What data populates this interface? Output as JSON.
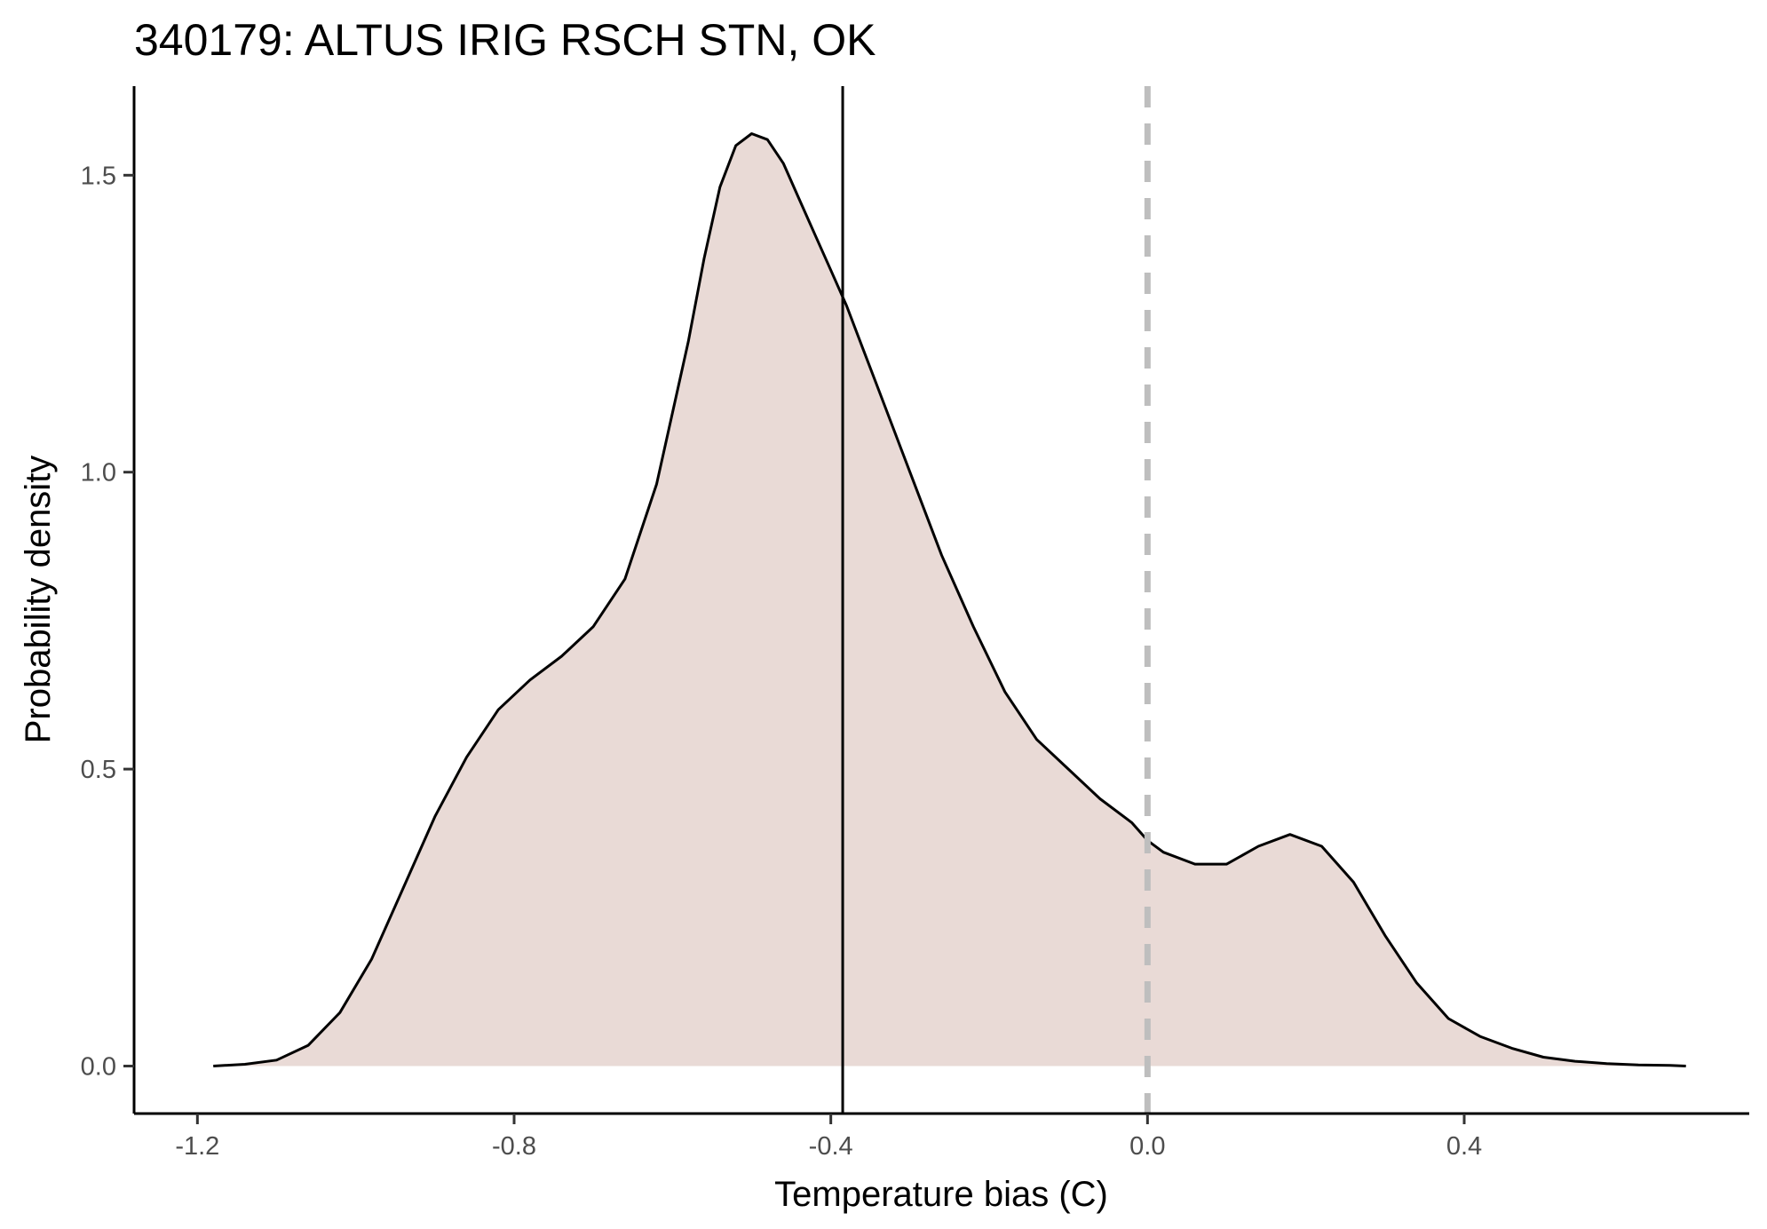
{
  "chart_data": {
    "type": "area",
    "title": "340179: ALTUS IRIG RSCH STN, OK",
    "xlabel": "Temperature bias (C)",
    "ylabel": "Probability density",
    "xlim": [
      -1.28,
      0.76
    ],
    "ylim": [
      -0.08,
      1.65
    ],
    "x_ticks": [
      -1.2,
      -0.8,
      -0.4,
      0.0,
      0.4
    ],
    "x_tick_labels": [
      "-1.2",
      "-0.8",
      "-0.4",
      "0.0",
      "0.4"
    ],
    "y_ticks": [
      0.0,
      0.5,
      1.0,
      1.5
    ],
    "y_tick_labels": [
      "0.0",
      "0.5",
      "1.0",
      "1.5"
    ],
    "grid": false,
    "series": [
      {
        "fill_color": "#e9dad6",
        "line_color": "#000000",
        "x": [
          -1.18,
          -1.14,
          -1.1,
          -1.06,
          -1.02,
          -0.98,
          -0.94,
          -0.9,
          -0.86,
          -0.82,
          -0.78,
          -0.74,
          -0.7,
          -0.66,
          -0.62,
          -0.58,
          -0.56,
          -0.54,
          -0.52,
          -0.5,
          -0.48,
          -0.46,
          -0.44,
          -0.42,
          -0.4,
          -0.38,
          -0.36,
          -0.34,
          -0.32,
          -0.3,
          -0.26,
          -0.22,
          -0.18,
          -0.14,
          -0.1,
          -0.06,
          -0.02,
          0.0,
          0.02,
          0.06,
          0.1,
          0.14,
          0.18,
          0.22,
          0.26,
          0.3,
          0.34,
          0.38,
          0.42,
          0.46,
          0.5,
          0.54,
          0.58,
          0.62,
          0.66,
          0.68
        ],
        "y": [
          0.0,
          0.003,
          0.01,
          0.035,
          0.09,
          0.18,
          0.3,
          0.42,
          0.52,
          0.6,
          0.65,
          0.69,
          0.74,
          0.82,
          0.98,
          1.22,
          1.36,
          1.48,
          1.55,
          1.57,
          1.56,
          1.52,
          1.46,
          1.4,
          1.34,
          1.28,
          1.21,
          1.14,
          1.07,
          1.0,
          0.86,
          0.74,
          0.63,
          0.55,
          0.5,
          0.45,
          0.41,
          0.38,
          0.36,
          0.34,
          0.34,
          0.37,
          0.39,
          0.37,
          0.31,
          0.22,
          0.14,
          0.08,
          0.05,
          0.03,
          0.015,
          0.008,
          0.004,
          0.002,
          0.001,
          0.0
        ]
      }
    ],
    "reference_lines": [
      {
        "orientation": "vertical",
        "x": -0.385,
        "style": "solid",
        "color": "#000000"
      },
      {
        "orientation": "vertical",
        "x": 0.0,
        "style": "dashed",
        "color": "#bebebe"
      }
    ]
  }
}
